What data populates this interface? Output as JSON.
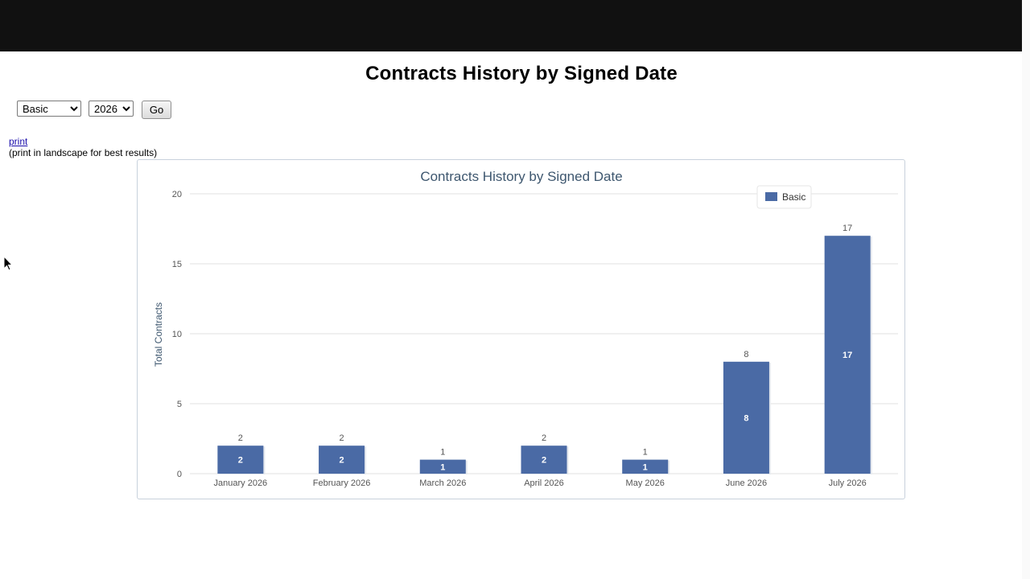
{
  "page": {
    "title": "Contracts History by Signed Date"
  },
  "controls": {
    "type_select": {
      "selected": "Basic",
      "options": [
        "Basic"
      ]
    },
    "year_select": {
      "selected": "2026",
      "options": [
        "2026"
      ]
    },
    "go_label": "Go"
  },
  "print": {
    "link_label": "print",
    "note": "(print in landscape for best results)"
  },
  "colors": {
    "bar": "#4a6aa5",
    "title": "#3e576f",
    "axis_text": "#555555"
  },
  "chart_data": {
    "type": "bar",
    "title": "Contracts History by Signed Date",
    "xlabel": "",
    "ylabel": "Total Contracts",
    "categories": [
      "January 2026",
      "February 2026",
      "March 2026",
      "April 2026",
      "May 2026",
      "June 2026",
      "July 2026"
    ],
    "series": [
      {
        "name": "Basic",
        "values": [
          2,
          2,
          1,
          2,
          1,
          8,
          17
        ]
      }
    ],
    "ylim": [
      0,
      20
    ],
    "yticks": [
      0,
      5,
      10,
      15,
      20
    ],
    "grid": true,
    "legend": "top-right",
    "data_labels": true
  }
}
